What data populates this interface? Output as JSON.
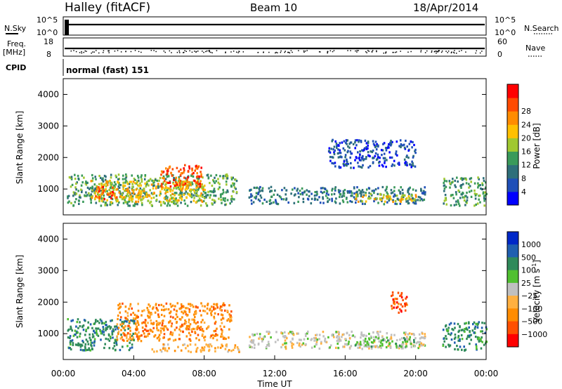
{
  "header": {
    "station": "Halley (fitACF)",
    "beam": "Beam 10",
    "date": "18/Apr/2014"
  },
  "colors": {
    "power": [
      "#0000ff",
      "#1f4fb8",
      "#2e6f7a",
      "#3a9a5a",
      "#a0c830",
      "#ffc000",
      "#ff8c00",
      "#ff4a00",
      "#ff0000"
    ],
    "velocity": [
      "#ff0000",
      "#ff5000",
      "#ff8c00",
      "#ffb040",
      "#c0c0c0",
      "#50c030",
      "#2f8a5a",
      "#1f5fb0",
      "#0028c8"
    ]
  },
  "chart_data": [
    {
      "type": "line",
      "name": "nsky-nsearch-panel",
      "left_label": "N.Sky",
      "right_label": "N.Search",
      "left_ticks": [
        "10^5",
        "10^0"
      ],
      "right_ticks": [
        "10^5",
        "10^0"
      ]
    },
    {
      "type": "scatter",
      "name": "freq-nave-panel",
      "left_label": "Freq.",
      "left_unit": "[MHz]",
      "right_label": "Nave",
      "left_ticks": [
        "18",
        "8"
      ],
      "right_ticks": [
        "60",
        "0"
      ],
      "cpid_label": "CPID",
      "cpid_text": "normal (fast) 151"
    },
    {
      "type": "heatmap",
      "name": "power-panel",
      "ylabel": "Slant Range [km]",
      "yticks": [
        1000,
        2000,
        3000,
        4000
      ],
      "ylim": [
        180,
        4500
      ],
      "xlim_hours": [
        0,
        24
      ],
      "colorbar_label": "Power [dB]",
      "colorbar_ticks": [
        "4",
        "8",
        "12",
        "16",
        "20",
        "24",
        "28"
      ],
      "regions": [
        {
          "t0": 0.2,
          "t1": 9.8,
          "r0": 500,
          "r1": 1500,
          "level": 3
        },
        {
          "t0": 1.5,
          "t1": 8.0,
          "r0": 600,
          "r1": 1300,
          "level": 5
        },
        {
          "t0": 5.5,
          "t1": 7.8,
          "r0": 1100,
          "r1": 1800,
          "level": 7
        },
        {
          "t0": 1.8,
          "t1": 3.0,
          "r0": 700,
          "r1": 1100,
          "level": 7
        },
        {
          "t0": 10.5,
          "t1": 20.5,
          "r0": 550,
          "r1": 1100,
          "level": 2
        },
        {
          "t0": 16.5,
          "t1": 20.0,
          "r0": 600,
          "r1": 900,
          "level": 5
        },
        {
          "t0": 15.0,
          "t1": 20.0,
          "r0": 1700,
          "r1": 2600,
          "level": 1
        },
        {
          "t0": 21.5,
          "t1": 24.0,
          "r0": 500,
          "r1": 1400,
          "level": 3
        }
      ]
    },
    {
      "type": "heatmap",
      "name": "velocity-panel",
      "ylabel": "Slant Range [km]",
      "xlabel": "Time UT",
      "yticks": [
        1000,
        2000,
        3000,
        4000
      ],
      "ylim": [
        180,
        4500
      ],
      "xlim_hours": [
        0,
        24
      ],
      "xticks": [
        "00:00",
        "04:00",
        "08:00",
        "12:00",
        "16:00",
        "20:00",
        "00:00"
      ],
      "colorbar_label": "Velocity [m s",
      "colorbar_superscript": "-1",
      "colorbar_label_close": "]",
      "colorbar_ticks": [
        "1000",
        "500",
        "100",
        "25",
        "−25",
        "−100",
        "−500",
        "−1000"
      ],
      "regions": [
        {
          "t0": 0.2,
          "t1": 4.0,
          "r0": 500,
          "r1": 1500,
          "level": 6
        },
        {
          "t0": 3.0,
          "t1": 9.5,
          "r0": 800,
          "r1": 2000,
          "level": 2
        },
        {
          "t0": 5.0,
          "t1": 10.0,
          "r0": 450,
          "r1": 700,
          "level": 3
        },
        {
          "t0": 10.5,
          "t1": 20.5,
          "r0": 550,
          "r1": 1100,
          "level": 4
        },
        {
          "t0": 16.5,
          "t1": 20.0,
          "r0": 600,
          "r1": 900,
          "level": 5
        },
        {
          "t0": 18.5,
          "t1": 19.5,
          "r0": 1700,
          "r1": 2400,
          "level": 1
        },
        {
          "t0": 21.5,
          "t1": 24.0,
          "r0": 500,
          "r1": 1400,
          "level": 6
        }
      ]
    }
  ]
}
